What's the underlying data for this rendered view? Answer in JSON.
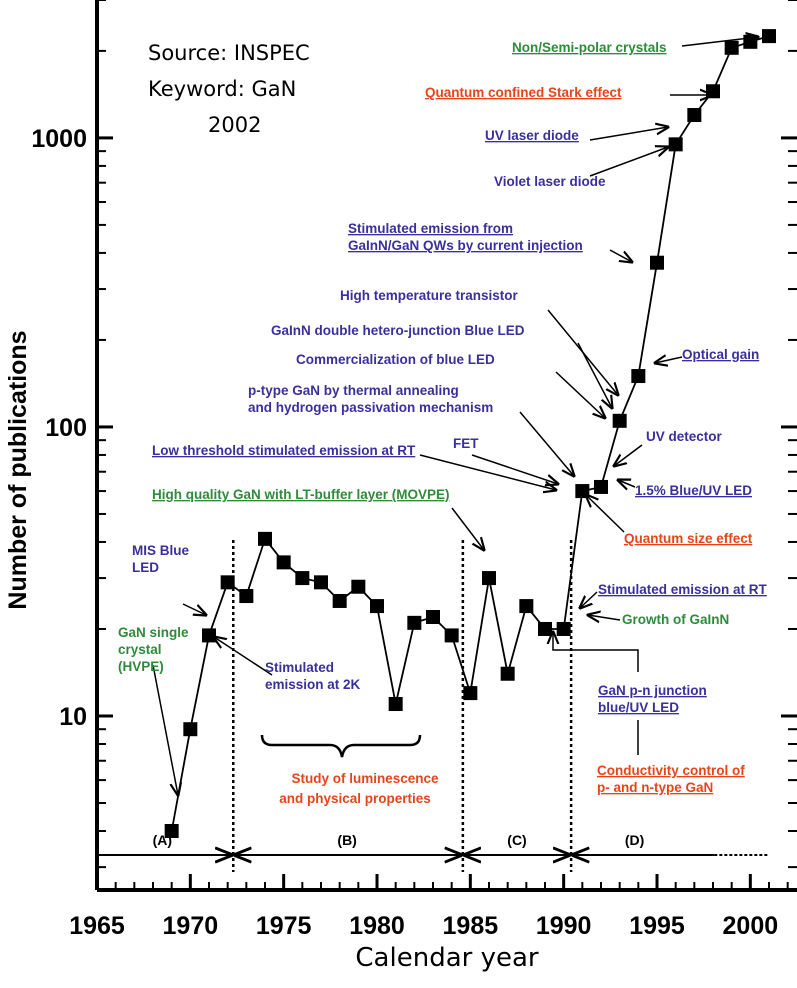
{
  "chart_data": {
    "type": "scatter",
    "title": "",
    "xlabel": "Calendar year",
    "ylabel": "Number of publications",
    "xlim": [
      1965,
      2002.5
    ],
    "ylim": [
      2.5,
      3000
    ],
    "yscale": "log",
    "xticks": [
      1965,
      1970,
      1975,
      1980,
      1985,
      1990,
      1995,
      2000
    ],
    "yticks": [
      10,
      100,
      1000
    ],
    "source_lines": [
      "Source: INSPEC",
      "Keyword: GaN",
      "2002"
    ],
    "series": [
      {
        "name": "",
        "x": [
          1969,
          1970,
          1971,
          1972,
          1973,
          1974,
          1975,
          1976,
          1977,
          1978,
          1979,
          1980,
          1981,
          1982,
          1983,
          1984,
          1985,
          1986,
          1987,
          1988,
          1989,
          1990,
          1991,
          1992,
          1993,
          1994,
          1995,
          1996,
          1997,
          1998,
          1999,
          2000,
          2001
        ],
        "y": [
          4,
          9,
          19,
          29,
          26,
          41,
          34,
          30,
          29,
          25,
          28,
          24,
          11,
          21,
          22,
          19,
          12,
          30,
          14,
          24,
          20,
          20,
          60,
          62,
          105,
          150,
          370,
          950,
          1200,
          1450,
          2050,
          2150,
          2250
        ]
      }
    ],
    "boundaries": [
      1972.3,
      1984.6,
      1990.4
    ],
    "regions": [
      {
        "label": "(A)",
        "x": 1968.5
      },
      {
        "label": "(B)",
        "x": 1978.4
      },
      {
        "label": "(C)",
        "x": 1987.5
      },
      {
        "label": "(D)",
        "x": 1993.8
      }
    ],
    "brace_label": [
      "Study of luminescence",
      "and physical properties"
    ],
    "annotations": [
      {
        "lines": [
          "Non/Semi-polar crystals"
        ],
        "color": "#2e8b3a",
        "underline": true
      },
      {
        "lines": [
          "Quantum confined  Stark effect"
        ],
        "color": "#e8441a",
        "underline": true
      },
      {
        "lines": [
          "UV laser  diode"
        ],
        "color": "#3a2f9c",
        "underline": true
      },
      {
        "lines": [
          "Violet laser diode"
        ],
        "color": "#3a2f9c",
        "underline": false
      },
      {
        "lines": [
          "Stimulated emission from",
          "GaInN/GaN QWs by current injection"
        ],
        "color": "#3a2f9c",
        "underline": true
      },
      {
        "lines": [
          "High temperature transistor"
        ],
        "color": "#3a2f9c",
        "underline": false
      },
      {
        "lines": [
          "GaInN double hetero-junction Blue LED"
        ],
        "color": "#3a2f9c",
        "underline": false
      },
      {
        "lines": [
          "Commercialization of blue LED"
        ],
        "color": "#3a2f9c",
        "underline": false
      },
      {
        "lines": [
          "Optical gain"
        ],
        "color": "#3a2f9c",
        "underline": true
      },
      {
        "lines": [
          "p-type  GaN by thermal  annealing",
          "and hydrogen passivation mechanism"
        ],
        "color": "#3a2f9c",
        "underline": false
      },
      {
        "lines": [
          "UV detector"
        ],
        "color": "#3a2f9c",
        "underline": false
      },
      {
        "lines": [
          "Low threshold stimulated emission at RT"
        ],
        "color": "#3a2f9c",
        "underline": true
      },
      {
        "lines": [
          "FET"
        ],
        "color": "#3a2f9c",
        "underline": false
      },
      {
        "lines": [
          "1.5% Blue/UV LED"
        ],
        "color": "#3a2f9c",
        "underline": true
      },
      {
        "lines": [
          "High quality GaN with LT-buffer layer (MOVPE)"
        ],
        "color": "#2e8b3a",
        "underline": true
      },
      {
        "lines": [
          "Quantum size effect"
        ],
        "color": "#e8441a",
        "underline": true
      },
      {
        "lines": [
          "MIS Blue",
          "LED"
        ],
        "color": "#3a2f9c",
        "underline": false
      },
      {
        "lines": [
          "Stimulated emission at RT"
        ],
        "color": "#3a2f9c",
        "underline": true
      },
      {
        "lines": [
          "GaN single",
          "crystal",
          "(HVPE)"
        ],
        "color": "#2e8b3a",
        "underline": false
      },
      {
        "lines": [
          "Growth  of  GaInN"
        ],
        "color": "#2e8b3a",
        "underline": false
      },
      {
        "lines": [
          "Stimulated",
          "emission at 2K"
        ],
        "color": "#3a2f9c",
        "underline": false
      },
      {
        "lines": [
          "GaN  p-n junction",
          "blue/UV LED"
        ],
        "color": "#3a2f9c",
        "underline": true
      },
      {
        "lines": [
          "Conductivity  control  of",
          "p-  and  n-type  GaN"
        ],
        "color": "#e8441a",
        "underline": true
      }
    ]
  }
}
